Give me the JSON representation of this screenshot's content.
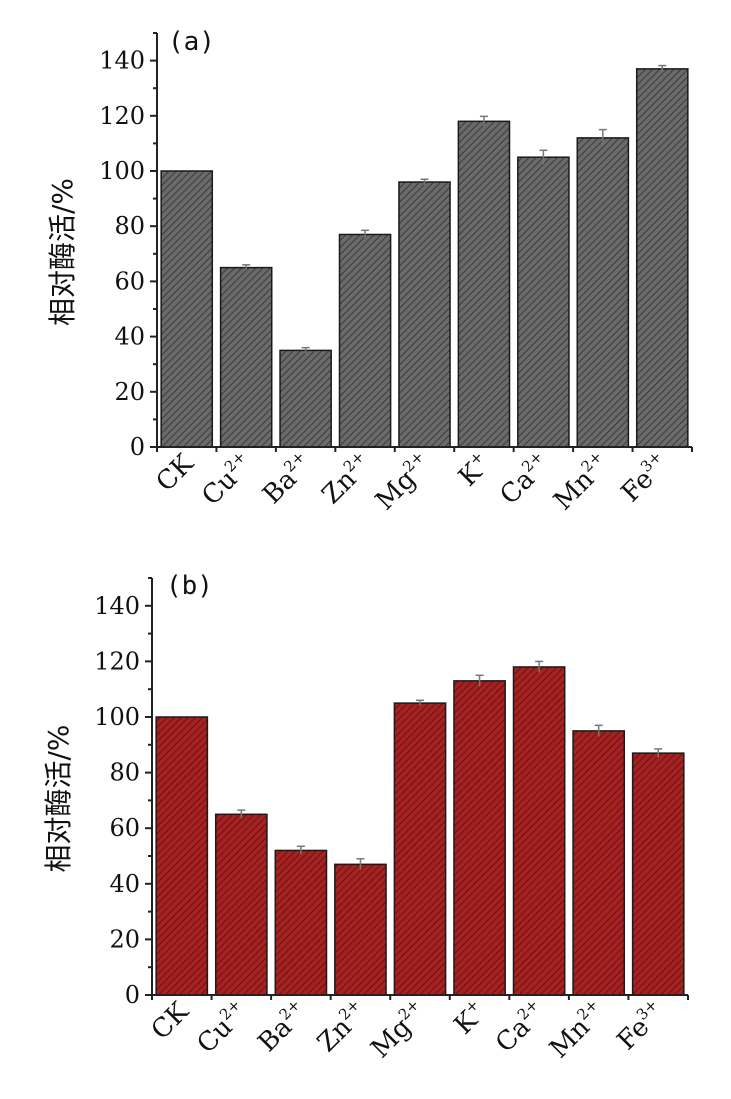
{
  "chart_data": [
    {
      "panel_label": "(a)",
      "type": "bar",
      "ylabel": "相对酶活/%",
      "ylim": [
        0,
        150
      ],
      "yticks": [
        "0",
        "20",
        "40",
        "60",
        "80",
        "100",
        "120",
        "140"
      ],
      "bar_color": "#595959",
      "categories": [
        {
          "base": "CK",
          "sup": ""
        },
        {
          "base": "Cu",
          "sup": "2+"
        },
        {
          "base": "Ba",
          "sup": "2+"
        },
        {
          "base": "Zn",
          "sup": "2+"
        },
        {
          "base": "Mg",
          "sup": "2+"
        },
        {
          "base": "K",
          "sup": "+"
        },
        {
          "base": "Ca",
          "sup": "2+"
        },
        {
          "base": "Mn",
          "sup": "2+"
        },
        {
          "base": "Fe",
          "sup": "3+"
        }
      ],
      "values": [
        100,
        65,
        35,
        77,
        96,
        118,
        105,
        112,
        137
      ],
      "errors": [
        0,
        1,
        1,
        1.5,
        1,
        1.8,
        2.5,
        3,
        1.2
      ]
    },
    {
      "panel_label": "(b)",
      "type": "bar",
      "ylabel": "相对酶活/%",
      "ylim": [
        0,
        150
      ],
      "yticks": [
        "0",
        "20",
        "40",
        "60",
        "80",
        "100",
        "120",
        "140"
      ],
      "bar_color": "#9b1c1c",
      "categories": [
        {
          "base": "CK",
          "sup": ""
        },
        {
          "base": "Cu",
          "sup": "2+"
        },
        {
          "base": "Ba",
          "sup": "2+"
        },
        {
          "base": "Zn",
          "sup": "2+"
        },
        {
          "base": "Mg",
          "sup": "2+"
        },
        {
          "base": "K",
          "sup": "+"
        },
        {
          "base": "Ca",
          "sup": "2+"
        },
        {
          "base": "Mn",
          "sup": "2+"
        },
        {
          "base": "Fe",
          "sup": "3+"
        }
      ],
      "values": [
        100,
        65,
        52,
        47,
        105,
        113,
        118,
        95,
        87
      ],
      "errors": [
        0,
        1.5,
        1.5,
        2,
        1,
        2,
        2,
        2,
        1.5
      ]
    }
  ]
}
